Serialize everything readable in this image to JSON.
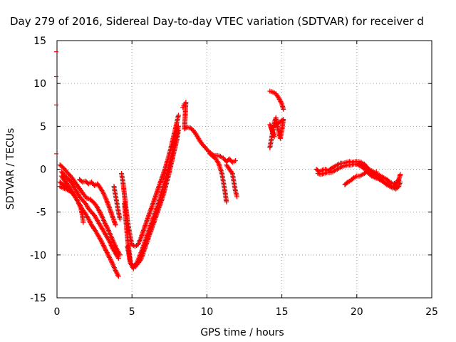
{
  "chart_data": {
    "type": "scatter",
    "title": "Day 279 of 2016, Sidereal Day-to-day VTEC variation (SDTVAR) for receiver d",
    "xlabel": "GPS time / hours",
    "ylabel": "SDTVAR / TECUs",
    "xlim": [
      0,
      25
    ],
    "ylim": [
      -15,
      15
    ],
    "grid": true,
    "marker": "plus",
    "point_color": "#ff0000",
    "xticks": [
      "0",
      "5",
      "10",
      "15",
      "20",
      "25"
    ],
    "yticks": [
      "-15",
      "-10",
      "-5",
      "0",
      "5",
      "10",
      "15"
    ],
    "left_axis_tick_values": [
      13.7,
      10.8,
      7.5,
      1.8
    ],
    "series": [
      {
        "points": [
          [
            0.2,
            0.5
          ],
          [
            0.4,
            0.2
          ],
          [
            0.6,
            -0.2
          ],
          [
            0.8,
            -0.6
          ],
          [
            1.0,
            -1.0
          ],
          [
            1.2,
            -1.5
          ],
          [
            1.4,
            -2.0
          ],
          [
            1.6,
            -2.5
          ],
          [
            1.8,
            -3.0
          ],
          [
            2.0,
            -3.4
          ],
          [
            2.2,
            -3.5
          ],
          [
            2.4,
            -3.8
          ],
          [
            2.6,
            -4.2
          ],
          [
            2.8,
            -4.8
          ],
          [
            3.0,
            -5.5
          ],
          [
            3.2,
            -6.3
          ],
          [
            3.4,
            -7.0
          ],
          [
            3.6,
            -7.8
          ],
          [
            3.8,
            -8.6
          ],
          [
            4.0,
            -9.4
          ],
          [
            4.2,
            -10.0
          ]
        ]
      },
      {
        "points": [
          [
            0.3,
            -0.3
          ],
          [
            0.5,
            -0.7
          ],
          [
            0.7,
            -1.1
          ],
          [
            0.9,
            -1.4
          ],
          [
            1.1,
            -2.0
          ],
          [
            1.3,
            -2.6
          ],
          [
            1.5,
            -3.2
          ],
          [
            1.7,
            -3.6
          ],
          [
            1.9,
            -4.0
          ],
          [
            2.1,
            -4.6
          ],
          [
            2.3,
            -5.0
          ],
          [
            2.5,
            -5.4
          ],
          [
            2.7,
            -6.0
          ],
          [
            2.9,
            -6.6
          ],
          [
            3.1,
            -7.2
          ],
          [
            3.3,
            -7.8
          ],
          [
            3.5,
            -8.4
          ],
          [
            3.7,
            -9.2
          ],
          [
            3.9,
            -9.8
          ],
          [
            4.1,
            -10.4
          ]
        ]
      },
      {
        "points": [
          [
            0.3,
            -0.8
          ],
          [
            0.5,
            -1.3
          ],
          [
            0.7,
            -1.8
          ],
          [
            0.9,
            -2.3
          ],
          [
            1.1,
            -2.9
          ],
          [
            1.3,
            -3.5
          ],
          [
            1.5,
            -4.1
          ],
          [
            1.7,
            -4.7
          ],
          [
            1.9,
            -5.2
          ],
          [
            2.1,
            -5.8
          ],
          [
            2.3,
            -6.5
          ],
          [
            2.5,
            -7.0
          ],
          [
            2.7,
            -7.6
          ],
          [
            2.9,
            -8.2
          ],
          [
            3.1,
            -8.9
          ],
          [
            3.3,
            -9.6
          ],
          [
            3.5,
            -10.3
          ],
          [
            3.7,
            -11.0
          ],
          [
            3.9,
            -11.8
          ],
          [
            4.1,
            -12.5
          ]
        ]
      },
      {
        "points": [
          [
            0.2,
            -1.5
          ],
          [
            0.4,
            -1.8
          ],
          [
            0.6,
            -2.1
          ],
          [
            0.8,
            -2.4
          ],
          [
            1.0,
            -2.7
          ],
          [
            1.2,
            -3.2
          ],
          [
            1.4,
            -3.8
          ],
          [
            1.6,
            -4.6
          ],
          [
            1.7,
            -5.5
          ],
          [
            1.75,
            -6.2
          ]
        ]
      },
      {
        "points": [
          [
            0.2,
            -2.0
          ],
          [
            0.4,
            -2.2
          ],
          [
            0.6,
            -2.3
          ],
          [
            0.8,
            -2.5
          ],
          [
            1.0,
            -2.7
          ]
        ]
      },
      {
        "points": [
          [
            1.5,
            -1.2
          ],
          [
            1.7,
            -1.5
          ],
          [
            1.9,
            -1.4
          ],
          [
            2.1,
            -1.7
          ],
          [
            2.3,
            -1.5
          ],
          [
            2.5,
            -1.9
          ],
          [
            2.7,
            -1.7
          ],
          [
            2.9,
            -2.2
          ],
          [
            3.1,
            -2.8
          ],
          [
            3.3,
            -3.6
          ],
          [
            3.5,
            -4.5
          ],
          [
            3.7,
            -5.5
          ],
          [
            3.9,
            -6.5
          ]
        ]
      },
      {
        "points": [
          [
            3.8,
            -2.0
          ],
          [
            3.9,
            -3.0
          ],
          [
            4.0,
            -4.0
          ],
          [
            4.1,
            -5.0
          ],
          [
            4.2,
            -5.8
          ]
        ]
      },
      {
        "points": [
          [
            4.3,
            -0.5
          ],
          [
            4.4,
            -1.5
          ],
          [
            4.5,
            -3.0
          ],
          [
            4.6,
            -4.5
          ],
          [
            4.7,
            -6.0
          ],
          [
            4.8,
            -7.0
          ],
          [
            4.9,
            -8.0
          ],
          [
            5.0,
            -8.8
          ],
          [
            5.2,
            -9.0
          ],
          [
            5.4,
            -8.8
          ],
          [
            5.6,
            -8.0
          ],
          [
            5.8,
            -7.0
          ],
          [
            6.0,
            -6.0
          ],
          [
            6.2,
            -5.0
          ],
          [
            6.4,
            -4.0
          ],
          [
            6.6,
            -3.0
          ],
          [
            6.8,
            -2.0
          ],
          [
            7.0,
            -1.0
          ],
          [
            7.2,
            0.0
          ],
          [
            7.4,
            1.2
          ],
          [
            7.6,
            2.5
          ],
          [
            7.8,
            4.0
          ],
          [
            8.0,
            5.5
          ],
          [
            8.1,
            6.3
          ]
        ]
      },
      {
        "points": [
          [
            4.5,
            -4.0
          ],
          [
            4.6,
            -6.0
          ],
          [
            4.7,
            -8.0
          ],
          [
            4.8,
            -9.5
          ],
          [
            4.9,
            -10.8
          ],
          [
            5.0,
            -11.3
          ],
          [
            5.1,
            -11.6
          ],
          [
            5.2,
            -11.4
          ],
          [
            5.4,
            -11.0
          ],
          [
            5.6,
            -10.5
          ],
          [
            5.8,
            -9.5
          ],
          [
            6.0,
            -8.5
          ],
          [
            6.2,
            -7.5
          ],
          [
            6.4,
            -6.5
          ],
          [
            6.6,
            -5.5
          ],
          [
            6.8,
            -4.5
          ],
          [
            7.0,
            -3.5
          ],
          [
            7.2,
            -2.3
          ],
          [
            7.4,
            -1.0
          ],
          [
            7.6,
            0.5
          ],
          [
            7.8,
            2.0
          ],
          [
            8.0,
            3.5
          ],
          [
            8.1,
            4.5
          ]
        ]
      },
      {
        "points": [
          [
            4.7,
            -9.0
          ],
          [
            4.9,
            -11.0
          ],
          [
            5.1,
            -11.3
          ],
          [
            5.3,
            -11.0
          ],
          [
            5.5,
            -10.2
          ],
          [
            5.7,
            -9.3
          ],
          [
            5.9,
            -8.3
          ],
          [
            6.1,
            -7.3
          ],
          [
            6.3,
            -6.3
          ],
          [
            6.5,
            -5.3
          ],
          [
            6.7,
            -4.3
          ],
          [
            6.9,
            -3.2
          ],
          [
            7.1,
            -2.0
          ],
          [
            7.3,
            -0.8
          ],
          [
            7.5,
            0.6
          ],
          [
            7.7,
            2.0
          ],
          [
            7.9,
            3.5
          ],
          [
            8.1,
            5.0
          ]
        ]
      },
      {
        "points": [
          [
            8.4,
            7.2
          ],
          [
            8.5,
            7.6
          ],
          [
            8.6,
            7.8
          ],
          [
            8.5,
            4.7
          ],
          [
            8.7,
            4.9
          ],
          [
            8.9,
            4.8
          ],
          [
            9.1,
            4.5
          ],
          [
            9.3,
            4.0
          ],
          [
            9.5,
            3.4
          ],
          [
            9.7,
            2.9
          ],
          [
            9.9,
            2.5
          ],
          [
            10.1,
            2.1
          ],
          [
            10.3,
            1.8
          ],
          [
            10.5,
            1.6
          ],
          [
            10.7,
            1.6
          ],
          [
            10.9,
            1.5
          ],
          [
            11.1,
            1.3
          ],
          [
            11.3,
            0.9
          ],
          [
            11.5,
            1.2
          ],
          [
            11.7,
            0.8
          ],
          [
            11.9,
            1.0
          ]
        ]
      },
      {
        "points": [
          [
            10.2,
            1.8
          ],
          [
            10.4,
            1.5
          ],
          [
            10.6,
            1.2
          ],
          [
            10.8,
            0.6
          ],
          [
            11.0,
            -0.5
          ],
          [
            11.1,
            -1.5
          ],
          [
            11.2,
            -2.5
          ],
          [
            11.3,
            -3.8
          ]
        ]
      },
      {
        "points": [
          [
            11.3,
            0.5
          ],
          [
            11.5,
            0.0
          ],
          [
            11.7,
            -0.5
          ],
          [
            11.8,
            -1.5
          ],
          [
            11.9,
            -2.5
          ],
          [
            12.0,
            -3.2
          ]
        ]
      },
      {
        "points": [
          [
            14.2,
            9.1
          ],
          [
            14.4,
            9.0
          ],
          [
            14.6,
            8.8
          ],
          [
            14.8,
            8.3
          ],
          [
            15.0,
            7.6
          ],
          [
            15.1,
            7.0
          ]
        ]
      },
      {
        "points": [
          [
            14.2,
            2.5
          ],
          [
            14.3,
            3.5
          ],
          [
            14.4,
            4.5
          ],
          [
            14.5,
            5.5
          ],
          [
            14.6,
            6.0
          ],
          [
            14.7,
            5.0
          ],
          [
            14.8,
            4.2
          ],
          [
            14.9,
            3.6
          ],
          [
            15.0,
            4.6
          ],
          [
            15.1,
            5.8
          ],
          [
            14.3,
            4.8
          ],
          [
            14.5,
            3.8
          ],
          [
            14.2,
            5.2
          ]
        ]
      },
      {
        "points": [
          [
            17.3,
            0.0
          ],
          [
            17.5,
            -0.3
          ],
          [
            17.7,
            -0.1
          ],
          [
            17.9,
            0.0
          ],
          [
            18.1,
            -0.2
          ],
          [
            18.3,
            0.1
          ],
          [
            18.5,
            0.3
          ],
          [
            18.7,
            0.5
          ],
          [
            18.9,
            0.7
          ],
          [
            19.1,
            0.7
          ],
          [
            19.3,
            0.8
          ],
          [
            19.5,
            0.9
          ],
          [
            19.7,
            0.8
          ],
          [
            19.9,
            0.9
          ],
          [
            20.1,
            0.9
          ],
          [
            20.3,
            0.8
          ],
          [
            20.5,
            0.6
          ],
          [
            20.7,
            0.2
          ],
          [
            20.9,
            -0.3
          ],
          [
            21.1,
            -0.5
          ],
          [
            21.3,
            -0.3
          ]
        ]
      },
      {
        "points": [
          [
            17.4,
            -0.5
          ],
          [
            17.6,
            -0.6
          ],
          [
            17.8,
            -0.5
          ],
          [
            18.0,
            -0.4
          ],
          [
            18.2,
            -0.4
          ],
          [
            18.4,
            -0.3
          ],
          [
            18.6,
            -0.1
          ],
          [
            18.8,
            0.1
          ],
          [
            19.0,
            0.3
          ],
          [
            19.2,
            0.4
          ],
          [
            19.4,
            0.5
          ],
          [
            19.6,
            0.5
          ],
          [
            19.8,
            0.6
          ],
          [
            20.0,
            0.6
          ],
          [
            20.2,
            0.4
          ],
          [
            20.4,
            0.2
          ],
          [
            20.6,
            -0.1
          ],
          [
            20.8,
            -0.5
          ],
          [
            21.0,
            -0.8
          ],
          [
            21.2,
            -1.0
          ],
          [
            21.4,
            -1.1
          ],
          [
            21.6,
            -1.3
          ],
          [
            21.8,
            -1.5
          ],
          [
            22.0,
            -1.7
          ],
          [
            22.2,
            -1.9
          ],
          [
            22.4,
            -2.1
          ],
          [
            22.6,
            -2.3
          ],
          [
            22.8,
            -2.0
          ],
          [
            22.9,
            -1.5
          ]
        ]
      },
      {
        "points": [
          [
            19.2,
            -1.8
          ],
          [
            19.4,
            -1.5
          ],
          [
            19.6,
            -1.3
          ],
          [
            19.8,
            -1.0
          ],
          [
            20.0,
            -0.8
          ],
          [
            20.2,
            -0.8
          ],
          [
            20.4,
            -0.6
          ],
          [
            20.6,
            -0.4
          ],
          [
            20.8,
            -0.3
          ],
          [
            21.0,
            -0.2
          ],
          [
            21.2,
            -0.6
          ],
          [
            21.4,
            -0.9
          ],
          [
            21.6,
            -1.2
          ],
          [
            21.8,
            -1.5
          ],
          [
            22.0,
            -1.8
          ],
          [
            22.2,
            -2.0
          ],
          [
            22.4,
            -2.2
          ],
          [
            22.6,
            -1.8
          ],
          [
            22.8,
            -1.2
          ],
          [
            22.9,
            -0.6
          ]
        ]
      },
      {
        "points": [
          [
            20.2,
            0.7
          ],
          [
            20.4,
            0.5
          ],
          [
            20.6,
            0.3
          ],
          [
            20.8,
            0.0
          ],
          [
            21.0,
            -0.2
          ],
          [
            21.2,
            -0.4
          ],
          [
            21.4,
            -0.6
          ],
          [
            21.6,
            -0.8
          ],
          [
            21.8,
            -1.0
          ],
          [
            22.0,
            -1.2
          ],
          [
            22.2,
            -1.5
          ],
          [
            22.4,
            -1.7
          ],
          [
            22.6,
            -1.6
          ],
          [
            22.8,
            -1.3
          ]
        ]
      }
    ]
  }
}
